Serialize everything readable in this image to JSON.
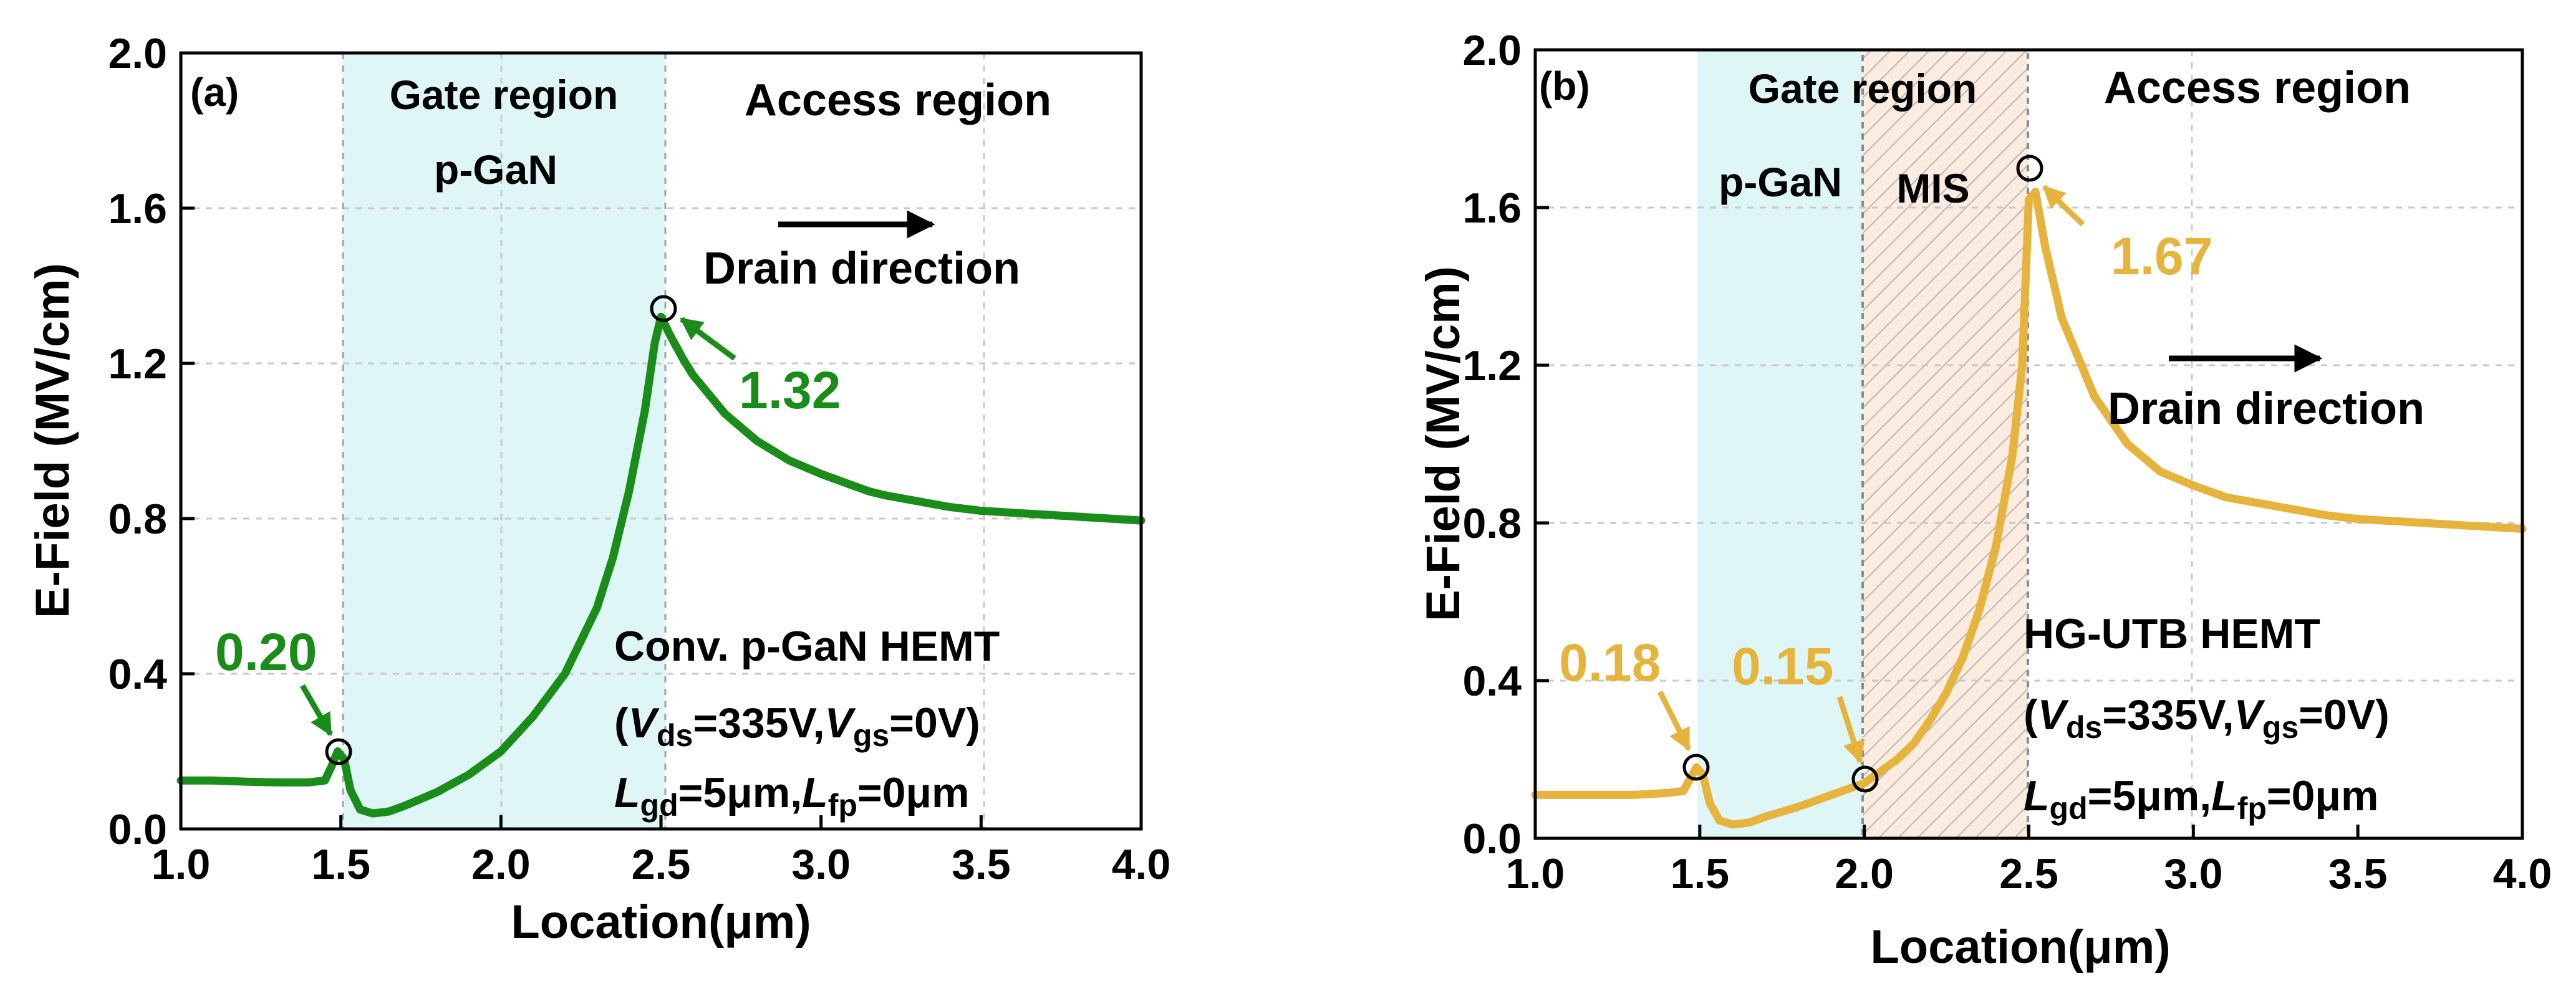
{
  "chart_data": [
    {
      "type": "line",
      "panel_label": "(a)",
      "xlabel": "Location(μm)",
      "ylabel": "E-Field (MV/cm)",
      "xlim": [
        1.0,
        4.0
      ],
      "ylim": [
        0.0,
        2.0
      ],
      "xticks": [
        1.0,
        1.5,
        2.0,
        2.5,
        3.0,
        3.5,
        4.0
      ],
      "xtick_labels": [
        "1.0",
        "1.5",
        "2.0",
        "2.5",
        "3.0",
        "3.5",
        "4.0"
      ],
      "yticks": [
        0.0,
        0.4,
        0.8,
        1.2,
        1.6,
        2.0
      ],
      "ytick_labels": [
        "0.0",
        "0.4",
        "0.8",
        "1.2",
        "1.6",
        "2.0"
      ],
      "grid": true,
      "color": "#1a8c1a",
      "regions": [
        {
          "x0": 1.5,
          "x1": 2.5,
          "color": "#dff6f6",
          "labels": [
            "Gate region",
            "p-GaN"
          ],
          "hatched": false
        }
      ],
      "region_labels": {
        "access": "Access region"
      },
      "arrow_text": "Drain direction",
      "annotations": [
        {
          "label": "0.20",
          "x": 1.49,
          "y": 0.2
        },
        {
          "label": "1.32",
          "x": 2.49,
          "y": 1.34
        }
      ],
      "device_text": {
        "line1": "Conv.  p-GaN HEMT",
        "vds": "ds",
        "vds_value": "=335V,",
        "vgs": "gs",
        "vgs_value": "=0V)",
        "lgd": "gd",
        "lgd_value": "=5μm,",
        "lfp": "fp",
        "lfp_value": "=0μm"
      },
      "series": [
        {
          "x": [
            1.0,
            1.1,
            1.2,
            1.3,
            1.4,
            1.45,
            1.47,
            1.49,
            1.51,
            1.53,
            1.56,
            1.6,
            1.65,
            1.7,
            1.8,
            1.9,
            2.0,
            2.1,
            2.2,
            2.3,
            2.35,
            2.4,
            2.45,
            2.48,
            2.5,
            2.53,
            2.57,
            2.6,
            2.7,
            2.8,
            2.9,
            3.0,
            3.1,
            3.15,
            3.2,
            3.3,
            3.4,
            3.5,
            3.6,
            3.7,
            3.8,
            3.9,
            4.0
          ],
          "y": [
            0.125,
            0.125,
            0.122,
            0.12,
            0.12,
            0.125,
            0.16,
            0.2,
            0.18,
            0.1,
            0.05,
            0.04,
            0.045,
            0.06,
            0.095,
            0.14,
            0.2,
            0.29,
            0.4,
            0.57,
            0.7,
            0.87,
            1.08,
            1.25,
            1.32,
            1.27,
            1.21,
            1.17,
            1.07,
            1.0,
            0.95,
            0.915,
            0.885,
            0.87,
            0.86,
            0.845,
            0.83,
            0.82,
            0.815,
            0.81,
            0.805,
            0.8,
            0.795
          ]
        }
      ]
    },
    {
      "type": "line",
      "panel_label": "(b)",
      "xlabel": "Location(μm)",
      "ylabel": "E-Field (MV/cm)",
      "xlim": [
        1.0,
        4.0
      ],
      "ylim": [
        0.0,
        2.0
      ],
      "xticks": [
        1.0,
        1.5,
        2.0,
        2.5,
        3.0,
        3.5,
        4.0
      ],
      "xtick_labels": [
        "1.0",
        "1.5",
        "2.0",
        "2.5",
        "3.0",
        "3.5",
        "4.0"
      ],
      "yticks": [
        0.0,
        0.4,
        0.8,
        1.2,
        1.6,
        2.0
      ],
      "ytick_labels": [
        "0.0",
        "0.4",
        "0.8",
        "1.2",
        "1.6",
        "2.0"
      ],
      "grid": true,
      "color": "#e6b43c",
      "regions": [
        {
          "x0": 1.5,
          "x1": 2.0,
          "color": "#dff6f6",
          "labels": [
            "p-GaN"
          ],
          "hatched": false
        },
        {
          "x0": 2.0,
          "x1": 2.5,
          "color": "#fcebdf",
          "labels": [
            "MIS"
          ],
          "hatched": true
        }
      ],
      "region_labels": {
        "gate": "Gate region",
        "access": "Access region"
      },
      "arrow_text": "Drain direction",
      "annotations": [
        {
          "label": "0.18",
          "x": 1.49,
          "y": 0.18
        },
        {
          "label": "0.15",
          "x": 2.01,
          "y": 0.15
        },
        {
          "label": "1.67",
          "x": 2.5,
          "y": 1.68
        }
      ],
      "device_text": {
        "line1": "HG-UTB HEMT",
        "vds": "ds",
        "vds_value": "=335V,",
        "vgs": "gs",
        "vgs_value": "=0V)",
        "lgd": "gd",
        "lgd_value": "=5μm,",
        "lfp": "fp",
        "lfp_value": "=0μm"
      },
      "series": [
        {
          "x": [
            1.0,
            1.1,
            1.2,
            1.3,
            1.4,
            1.45,
            1.47,
            1.49,
            1.51,
            1.53,
            1.56,
            1.6,
            1.65,
            1.7,
            1.8,
            1.9,
            2.0,
            2.05,
            2.1,
            2.15,
            2.2,
            2.25,
            2.3,
            2.35,
            2.4,
            2.45,
            2.48,
            2.5,
            2.52,
            2.55,
            2.6,
            2.7,
            2.8,
            2.9,
            3.0,
            3.1,
            3.2,
            3.3,
            3.4,
            3.5,
            3.6,
            3.7,
            3.8,
            3.9,
            4.0
          ],
          "y": [
            0.11,
            0.11,
            0.11,
            0.11,
            0.115,
            0.12,
            0.15,
            0.18,
            0.16,
            0.09,
            0.045,
            0.035,
            0.04,
            0.055,
            0.08,
            0.11,
            0.14,
            0.17,
            0.2,
            0.24,
            0.3,
            0.37,
            0.46,
            0.58,
            0.74,
            0.97,
            1.2,
            1.62,
            1.64,
            1.5,
            1.32,
            1.12,
            1.0,
            0.93,
            0.895,
            0.865,
            0.85,
            0.835,
            0.82,
            0.81,
            0.805,
            0.8,
            0.795,
            0.79,
            0.785
          ]
        }
      ]
    }
  ]
}
